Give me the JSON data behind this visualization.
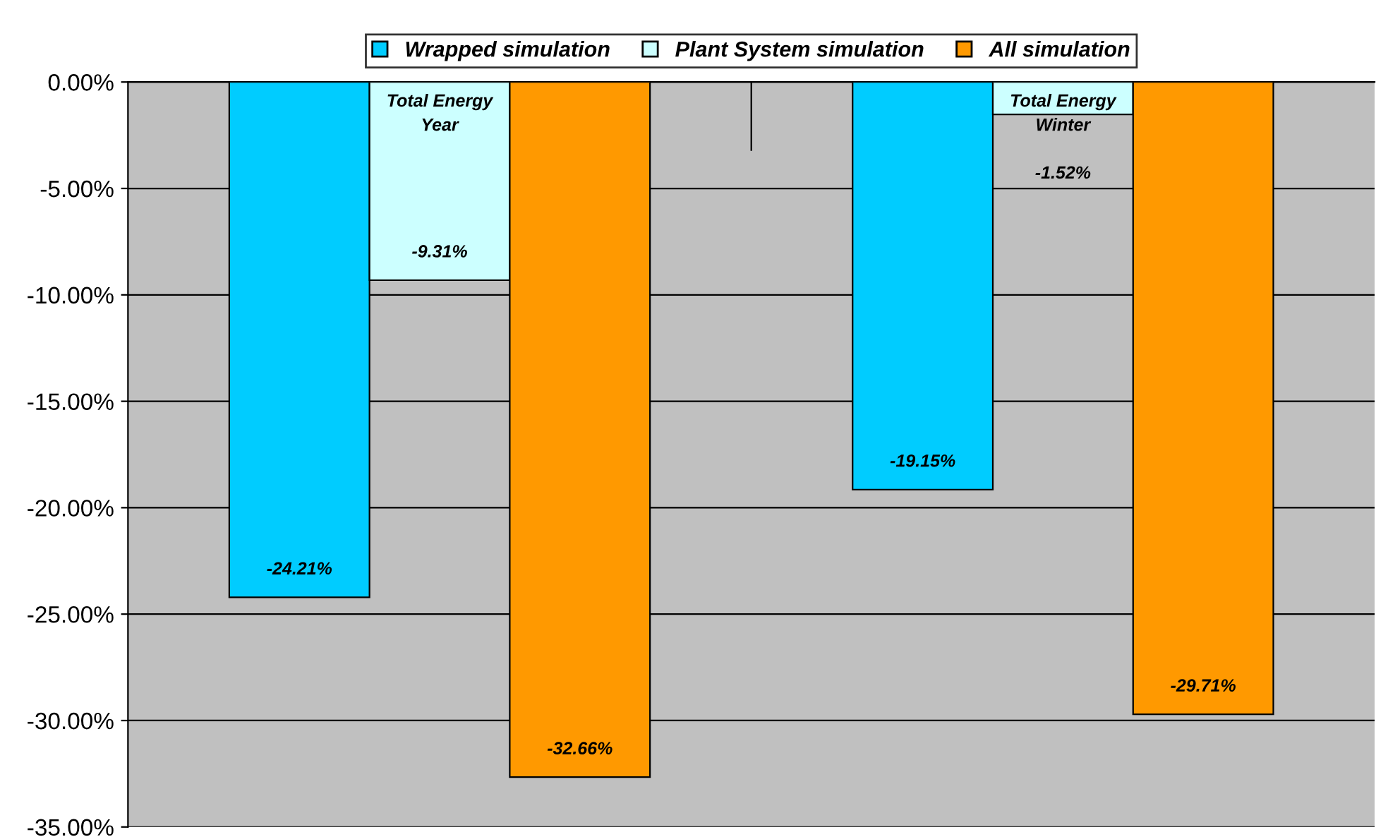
{
  "chart_data": {
    "type": "bar",
    "categories": [
      "Total Energy\nYear",
      "Total Energy\nWinter"
    ],
    "series": [
      {
        "name": "Wrapped simulation",
        "color": "#00ccff",
        "values": [
          -24.21,
          -19.15
        ],
        "value_labels": [
          "-24.21%",
          "-19.15%"
        ]
      },
      {
        "name": "Plant System simulation",
        "color": "#ccffff",
        "values": [
          -9.31,
          -1.52
        ],
        "value_labels": [
          "-9.31%",
          "-1.52%"
        ]
      },
      {
        "name": "All simulation",
        "color": "#ff9900",
        "values": [
          -32.66,
          -29.71
        ],
        "value_labels": [
          "-32.66%",
          "-29.71%"
        ]
      }
    ],
    "ylim": [
      -35,
      0
    ],
    "yticks": [
      {
        "value": 0,
        "label": "0.00%"
      },
      {
        "value": -5,
        "label": "-5.00%"
      },
      {
        "value": -10,
        "label": "-10.00%"
      },
      {
        "value": -15,
        "label": "-15.00%"
      },
      {
        "value": -20,
        "label": "-20.00%"
      },
      {
        "value": -25,
        "label": "-25.00%"
      },
      {
        "value": -30,
        "label": "-30.00%"
      },
      {
        "value": -35,
        "label": "-35.00%"
      }
    ],
    "grid": "y",
    "legend": "top"
  }
}
